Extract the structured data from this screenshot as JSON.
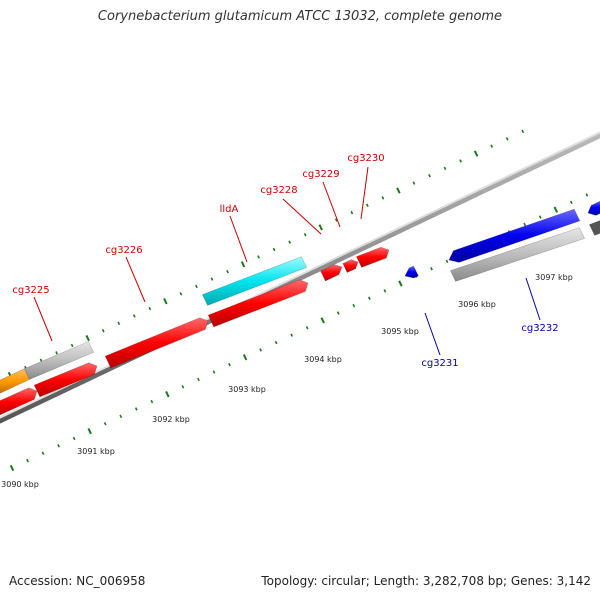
{
  "title": "Corynebacterium glutamicum ATCC 13032, complete genome",
  "footer": {
    "accession": "Accession: NC_006958",
    "summary": "Topology: circular; Length: 3,282,708 bp; Genes: 3,142"
  },
  "axis": {
    "unit": "kbp",
    "tick_labels": [
      "3090 kbp",
      "3091 kbp",
      "3092 kbp",
      "3093 kbp",
      "3094 kbp",
      "3095 kbp",
      "3096 kbp",
      "3097 kbp"
    ]
  },
  "colors": {
    "forward_label": "#cc0000",
    "reverse_label": "#0000aa",
    "cds_forward": "#ff0000",
    "cds_reverse": "#0000ee",
    "cds_highlight": "#00e5ee",
    "cds_other": "#ff9900",
    "cds_grey": "#b8b8b8",
    "backbone": "#888888",
    "tick": "#1a7a1a"
  },
  "genes": [
    {
      "label": "cg3225",
      "strand": "forward"
    },
    {
      "label": "cg3226",
      "strand": "forward"
    },
    {
      "label": "lldA",
      "strand": "forward"
    },
    {
      "label": "cg3228",
      "strand": "forward"
    },
    {
      "label": "cg3229",
      "strand": "forward"
    },
    {
      "label": "cg3230",
      "strand": "forward"
    },
    {
      "label": "cg3231",
      "strand": "reverse"
    },
    {
      "label": "cg3232",
      "strand": "reverse"
    }
  ]
}
